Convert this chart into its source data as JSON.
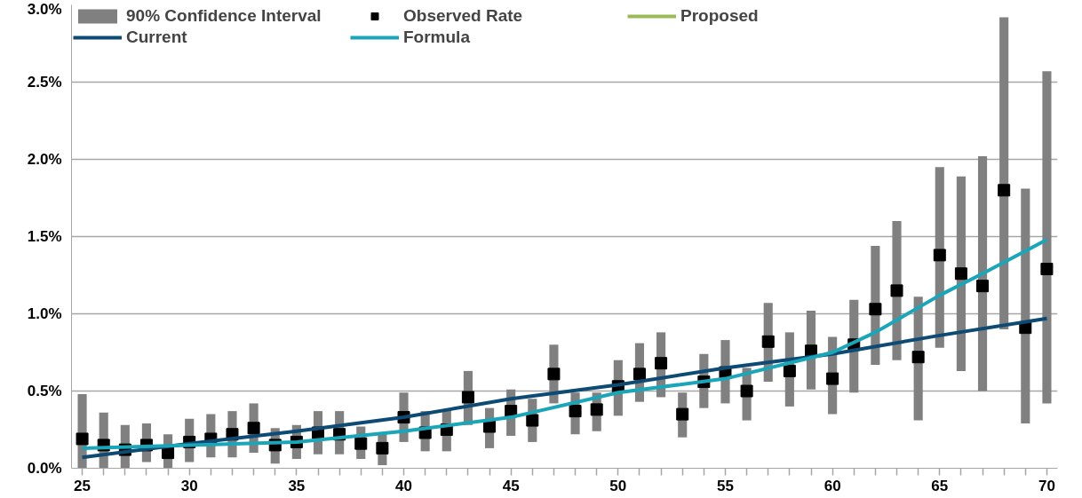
{
  "chart_data": {
    "type": "line",
    "x": [
      25,
      26,
      27,
      28,
      29,
      30,
      31,
      32,
      33,
      34,
      35,
      36,
      37,
      38,
      39,
      40,
      41,
      42,
      43,
      44,
      45,
      46,
      47,
      48,
      49,
      50,
      51,
      52,
      53,
      54,
      55,
      56,
      57,
      58,
      59,
      60,
      61,
      62,
      63,
      64,
      65,
      66,
      67,
      68,
      69,
      70
    ],
    "series": [
      {
        "name": "90% Confidence Interval",
        "type": "bar",
        "color": "#808080",
        "base": [
          0,
          0,
          0,
          0.04,
          0,
          0.04,
          0.07,
          0.07,
          0.1,
          0.03,
          0.06,
          0.09,
          0.09,
          0.06,
          0.02,
          0.17,
          0.11,
          0.11,
          0.28,
          0.13,
          0.21,
          0.17,
          0.42,
          0.22,
          0.24,
          0.34,
          0.43,
          0.46,
          0.2,
          0.39,
          0.42,
          0.31,
          0.56,
          0.4,
          0.51,
          0.35,
          0.49,
          0.67,
          0.7,
          0.31,
          0.78,
          0.63,
          0.5,
          0.9,
          0.29,
          0.42
        ],
        "values": [
          0.48,
          0.36,
          0.28,
          0.25,
          0.22,
          0.28,
          0.28,
          0.3,
          0.32,
          0.23,
          0.22,
          0.28,
          0.28,
          0.21,
          0.2,
          0.32,
          0.26,
          0.27,
          0.35,
          0.26,
          0.3,
          0.28,
          0.38,
          0.27,
          0.25,
          0.36,
          0.38,
          0.42,
          0.29,
          0.35,
          0.41,
          0.34,
          0.51,
          0.48,
          0.51,
          0.5,
          0.6,
          0.77,
          0.9,
          0.8,
          1.17,
          1.26,
          1.52,
          2.02,
          1.52,
          2.15
        ]
      },
      {
        "name": "Observed Rate",
        "type": "scatter",
        "marker": "square",
        "color": "#000000",
        "values": [
          0.19,
          0.15,
          0.12,
          0.15,
          0.1,
          0.17,
          0.19,
          0.22,
          0.26,
          0.15,
          0.17,
          0.23,
          0.22,
          0.16,
          0.13,
          0.33,
          0.23,
          0.25,
          0.46,
          0.27,
          0.37,
          0.31,
          0.61,
          0.37,
          0.38,
          0.53,
          0.61,
          0.68,
          0.35,
          0.56,
          0.62,
          0.5,
          0.82,
          0.63,
          0.76,
          0.58,
          0.8,
          1.03,
          1.15,
          0.72,
          1.38,
          1.26,
          1.18,
          1.8,
          0.91,
          1.29
        ]
      },
      {
        "name": "Proposed",
        "color": "#9bbb59",
        "values": [
          null,
          null,
          null,
          null,
          null,
          null,
          null,
          null,
          null,
          null,
          null,
          null,
          null,
          null,
          null,
          null,
          null,
          null,
          null,
          null,
          null,
          null,
          null,
          null,
          null,
          null,
          null,
          null,
          null,
          null,
          null,
          null,
          null,
          null,
          null,
          null,
          null,
          null,
          null,
          null,
          null,
          null,
          null,
          null,
          null,
          null
        ]
      },
      {
        "name": "Current",
        "color": "#0d4a74",
        "x": [
          25,
          30,
          35,
          40,
          45,
          50,
          55,
          60,
          65,
          70
        ],
        "values": [
          0.07,
          0.16,
          0.24,
          0.33,
          0.45,
          0.54,
          0.65,
          0.74,
          0.86,
          0.97
        ]
      },
      {
        "name": "Formula",
        "color": "#1ba5b8",
        "x": [
          25,
          30,
          35,
          40,
          45,
          50,
          55,
          60,
          62,
          65,
          67,
          70
        ],
        "values": [
          0.13,
          0.15,
          0.17,
          0.24,
          0.33,
          0.49,
          0.58,
          0.75,
          0.88,
          1.12,
          1.26,
          1.48
        ]
      }
    ],
    "xlim": [
      24.5,
      70.5
    ],
    "xticks": [
      25,
      {
        "value": 26,
        "label": null
      },
      {
        "value": 27,
        "label": null
      },
      {
        "value": 28,
        "label": null
      },
      {
        "value": 29,
        "label": null
      },
      30,
      {
        "value": 31,
        "label": null
      },
      {
        "value": 32,
        "label": null
      },
      {
        "value": 33,
        "label": null
      },
      {
        "value": 34,
        "label": null
      },
      35,
      {
        "value": 36,
        "label": null
      },
      {
        "value": 37,
        "label": null
      },
      {
        "value": 38,
        "label": null
      },
      {
        "value": 39,
        "label": null
      },
      40,
      {
        "value": 41,
        "label": null
      },
      {
        "value": 42,
        "label": null
      },
      {
        "value": 43,
        "label": null
      },
      {
        "value": 44,
        "label": null
      },
      45,
      {
        "value": 46,
        "label": null
      },
      {
        "value": 47,
        "label": null
      },
      {
        "value": 48,
        "label": null
      },
      {
        "value": 49,
        "label": null
      },
      50,
      {
        "value": 51,
        "label": null
      },
      {
        "value": 52,
        "label": null
      },
      {
        "value": 53,
        "label": null
      },
      {
        "value": 54,
        "label": null
      },
      55,
      {
        "value": 56,
        "label": null
      },
      {
        "value": 57,
        "label": null
      },
      {
        "value": 58,
        "label": null
      },
      {
        "value": 59,
        "label": null
      },
      60,
      {
        "value": 61,
        "label": null
      },
      {
        "value": 62,
        "label": null
      },
      {
        "value": 63,
        "label": null
      },
      {
        "value": 64,
        "label": null
      },
      65,
      {
        "value": 66,
        "label": null
      },
      {
        "value": 67,
        "label": null
      },
      {
        "value": 68,
        "label": null
      },
      {
        "value": 69,
        "label": null
      },
      70
    ],
    "ylim": [
      0,
      3
    ],
    "yticks": [
      {
        "value": 0,
        "label": "0.0%"
      },
      {
        "value": 0.5,
        "label": "0.5%"
      },
      {
        "value": 1,
        "label": "1.0%"
      },
      {
        "value": 1.5,
        "label": "1.5%"
      },
      {
        "value": 2,
        "label": "2.0%"
      },
      {
        "value": 2.5,
        "label": "2.5%"
      },
      {
        "value": 3,
        "label": "3.0%"
      }
    ],
    "grid": "y",
    "legend": "top",
    "line_style": "solid"
  }
}
